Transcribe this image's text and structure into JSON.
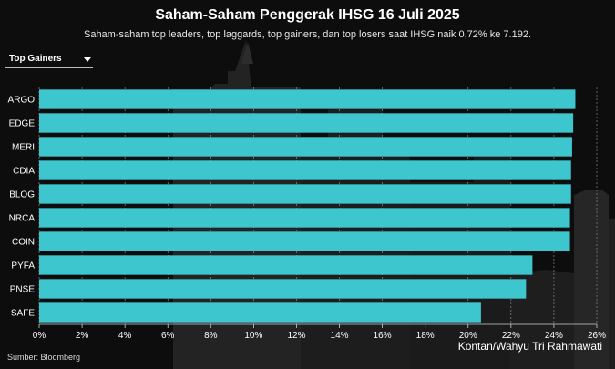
{
  "header": {
    "title": "Saham-Saham Penggerak IHSG 16 Juli 2025",
    "subtitle": "Saham-saham top leaders, top laggards, top gainers, dan top losers saat IHSG naik 0,72% ke 7.192."
  },
  "dropdown": {
    "selected": "Top Gainers",
    "icon": "chevron-down-icon"
  },
  "footer": {
    "credit": "Kontan/Wahyu Tri Rahmawati",
    "source": "Sumber: Bloomberg"
  },
  "colors": {
    "bar": "#3ec6cf",
    "background": "#0d0d0d",
    "grid": "#9a9a9a",
    "skyline": "#232323"
  },
  "chart_data": {
    "type": "bar",
    "orientation": "horizontal",
    "categories": [
      "ARGO",
      "EDGE",
      "MERI",
      "CDIA",
      "BLOG",
      "NRCA",
      "COIN",
      "PYFA",
      "PNSE",
      "SAFE"
    ],
    "values": [
      25.0,
      24.9,
      24.85,
      24.8,
      24.8,
      24.75,
      24.75,
      23.0,
      22.7,
      20.6
    ],
    "xlim": [
      0,
      26
    ],
    "xticks": [
      "0%",
      "2%",
      "4%",
      "6%",
      "8%",
      "10%",
      "12%",
      "14%",
      "16%",
      "18%",
      "20%",
      "22%",
      "24%",
      "26%"
    ],
    "grid": true
  }
}
